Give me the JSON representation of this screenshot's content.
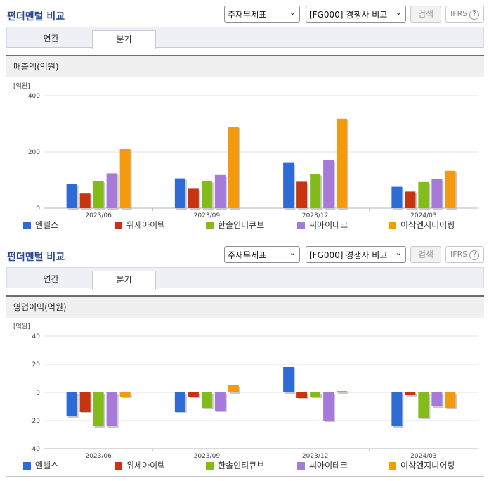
{
  "header": {
    "title": "펀더멘털 비교",
    "select_type": "주재무제표",
    "select_group": "[FG000] 경쟁사 비교",
    "search_label": "검색",
    "ifrs_label": "IFRS",
    "ifrs_help": "?"
  },
  "tabs": [
    "연간",
    "분기"
  ],
  "active_tab": 1,
  "panels": [
    {
      "metric": "매출액(억원)"
    },
    {
      "metric": "영업이익(억원)"
    }
  ],
  "colors": [
    "#2f6bd7",
    "#c8340f",
    "#83bb1a",
    "#a57ad8",
    "#f59a0e"
  ],
  "chart_data": [
    {
      "type": "bar",
      "title": "매출액(억원)",
      "ylabel": "[억원]",
      "ylim": [
        0,
        400
      ],
      "yticks": [
        0,
        200,
        400
      ],
      "categories": [
        "2023/06",
        "2023/09",
        "2023/12",
        "2024/03"
      ],
      "series": [
        {
          "name": "엔텔스",
          "values": [
            86,
            106,
            161,
            76
          ]
        },
        {
          "name": "위세아이텍",
          "values": [
            52,
            69,
            94,
            59
          ]
        },
        {
          "name": "한솔인티큐브",
          "values": [
            96,
            96,
            121,
            93
          ]
        },
        {
          "name": "씨아이테크",
          "values": [
            124,
            118,
            171,
            104
          ]
        },
        {
          "name": "이삭엔지니어링",
          "values": [
            210,
            290,
            318,
            133
          ]
        }
      ]
    },
    {
      "type": "bar",
      "title": "영업이익(억원)",
      "ylabel": "[억원]",
      "ylim": [
        -40,
        40
      ],
      "yticks": [
        -40,
        -20,
        0,
        20,
        40
      ],
      "categories": [
        "2023/06",
        "2023/09",
        "2023/12",
        "2024/03"
      ],
      "series": [
        {
          "name": "엔텔스",
          "values": [
            -17,
            -14,
            18,
            -24
          ]
        },
        {
          "name": "위세아이텍",
          "values": [
            -14,
            -3,
            -4,
            -2
          ]
        },
        {
          "name": "한솔인티큐브",
          "values": [
            -24,
            -11,
            -3,
            -18
          ]
        },
        {
          "name": "씨아이테크",
          "values": [
            -24,
            -13,
            -20,
            -10
          ]
        },
        {
          "name": "이삭엔지니어링",
          "values": [
            -3,
            5,
            1,
            -11
          ]
        }
      ]
    }
  ]
}
